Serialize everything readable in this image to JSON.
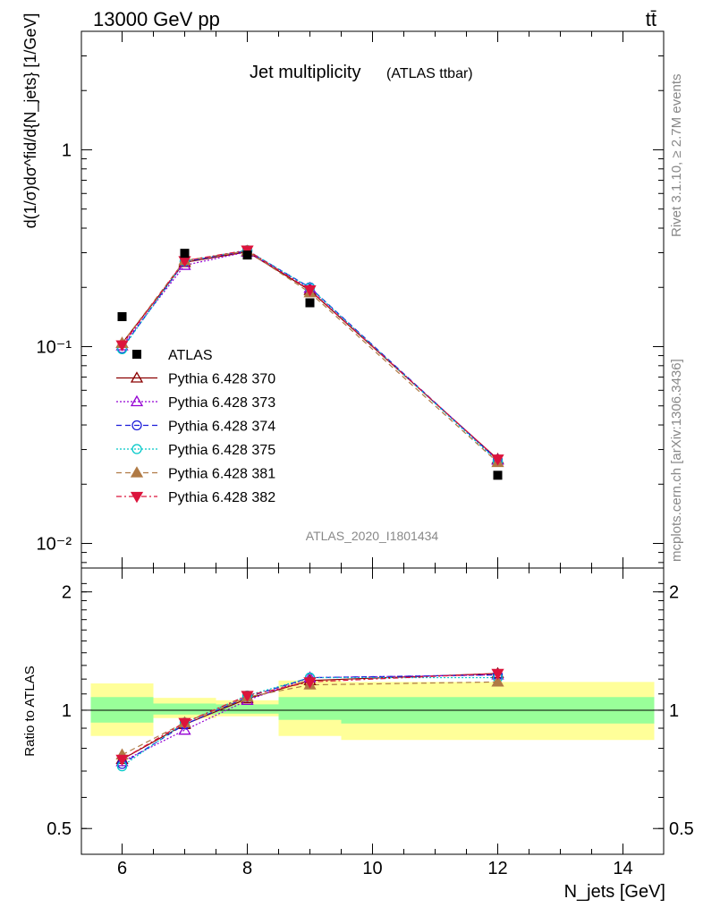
{
  "header": {
    "energy": "13000 GeV pp",
    "process": "tt̄",
    "title": "Jet multiplicity",
    "subtitle": "(ATLAS ttbar)",
    "analysis_id": "ATLAS_2020_I1801434",
    "rivet": "Rivet 3.1.10, ≥ 2.7M events",
    "source": "mcplots.cern.ch [arXiv:1306.3436]"
  },
  "axes": {
    "ylabel_main": "d(1/σ)dσ^fid/d{N_jets} [1/GeV]",
    "ylabel_ratio": "Ratio to ATLAS",
    "xlabel": "N_jets [GeV]",
    "xticks": [
      "6",
      "8",
      "10",
      "12",
      "14"
    ],
    "yticks_main": [
      "10⁻²",
      "10⁻¹",
      "1"
    ],
    "yticks_ratio": [
      "0.5",
      "1",
      "2"
    ]
  },
  "chart_data": {
    "type": "scatter",
    "xlim": [
      5.35,
      14.65
    ],
    "ylim_main": [
      0.0075,
      4.0
    ],
    "ylog": true,
    "ylim_ratio": [
      0.43,
      2.3
    ],
    "ratio_log": true,
    "x": [
      6,
      7,
      8,
      9,
      12
    ],
    "data": {
      "name": "ATLAS",
      "color": "#000000",
      "values": [
        0.142,
        0.298,
        0.292,
        0.167,
        0.0222
      ],
      "bins": [
        [
          5.5,
          6.5
        ],
        [
          6.5,
          7.5
        ],
        [
          7.5,
          8.5
        ],
        [
          8.5,
          9.5
        ],
        [
          9.5,
          14.5
        ]
      ],
      "stat_band": [
        [
          0.93,
          1.08
        ],
        [
          0.975,
          1.04
        ],
        [
          0.98,
          1.035
        ],
        [
          0.945,
          1.08
        ],
        [
          0.925,
          1.08
        ]
      ],
      "total_band": [
        [
          0.86,
          1.17
        ],
        [
          0.955,
          1.075
        ],
        [
          0.965,
          1.06
        ],
        [
          0.86,
          1.19
        ],
        [
          0.84,
          1.18
        ]
      ]
    },
    "series": [
      {
        "name": "Pythia 6.428 370",
        "color": "#8b0000",
        "marker": "triangle-open",
        "dash": "",
        "values": [
          0.104,
          0.268,
          0.303,
          0.193,
          0.0268
        ],
        "ratio": [
          0.75,
          0.92,
          1.07,
          1.19,
          1.24
        ]
      },
      {
        "name": "Pythia 6.428 373",
        "color": "#9400d3",
        "marker": "triangle-open",
        "dash": "2,2",
        "values": [
          0.101,
          0.259,
          0.303,
          0.198,
          0.0265
        ],
        "ratio": [
          0.74,
          0.89,
          1.06,
          1.21,
          1.23
        ]
      },
      {
        "name": "Pythia 6.428 374",
        "color": "#1c1cd9",
        "marker": "circle-open",
        "dash": "6,4",
        "values": [
          0.098,
          0.27,
          0.307,
          0.2,
          0.0265
        ],
        "ratio": [
          0.73,
          0.92,
          1.08,
          1.21,
          1.23
        ]
      },
      {
        "name": "Pythia 6.428 375",
        "color": "#00c8c8",
        "marker": "circle-open",
        "dash": "2,2",
        "values": [
          0.097,
          0.272,
          0.309,
          0.199,
          0.0261
        ],
        "ratio": [
          0.72,
          0.93,
          1.09,
          1.21,
          1.21
        ]
      },
      {
        "name": "Pythia 6.428 381",
        "color": "#b07a45",
        "marker": "triangle-filled",
        "dash": "6,4",
        "values": [
          0.104,
          0.274,
          0.306,
          0.188,
          0.0258
        ],
        "ratio": [
          0.77,
          0.93,
          1.08,
          1.16,
          1.18
        ]
      },
      {
        "name": "Pythia 6.428 382",
        "color": "#dc143c",
        "marker": "triangle-down-filled",
        "dash": "6,3,2,3",
        "values": [
          0.102,
          0.273,
          0.309,
          0.194,
          0.0268
        ],
        "ratio": [
          0.75,
          0.93,
          1.09,
          1.18,
          1.24
        ]
      }
    ]
  }
}
